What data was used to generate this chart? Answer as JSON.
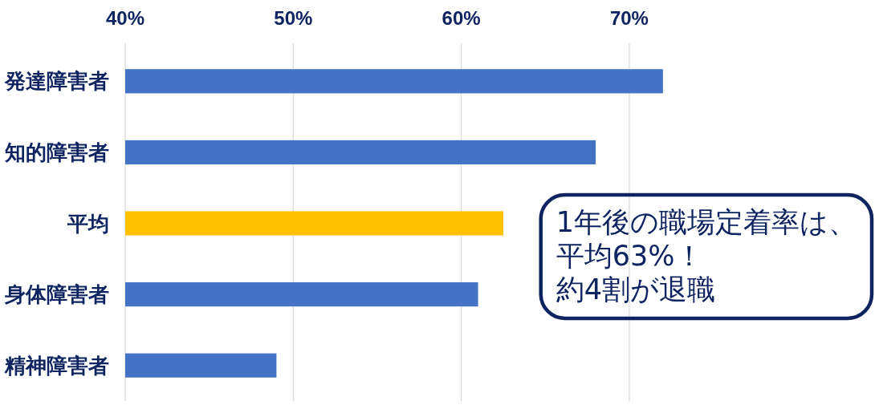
{
  "chart_data": {
    "type": "bar",
    "orientation": "horizontal",
    "categories": [
      "発達障害者",
      "知的障害者",
      "平均",
      "身体障害者",
      "精神障害者"
    ],
    "values": [
      72,
      68,
      62.5,
      61,
      49
    ],
    "colors": [
      "#4472c4",
      "#4472c4",
      "#ffc000",
      "#4472c4",
      "#4472c4"
    ],
    "xlim": [
      40,
      72
    ],
    "xticks": [
      {
        "value": 40,
        "label": "40%"
      },
      {
        "value": 50,
        "label": "50%"
      },
      {
        "value": 60,
        "label": "60%"
      },
      {
        "value": 70,
        "label": "70%"
      }
    ],
    "grid": "x",
    "annotations": [
      "1年後の職場定着率は、平均63%！約4割が退職"
    ]
  }
}
